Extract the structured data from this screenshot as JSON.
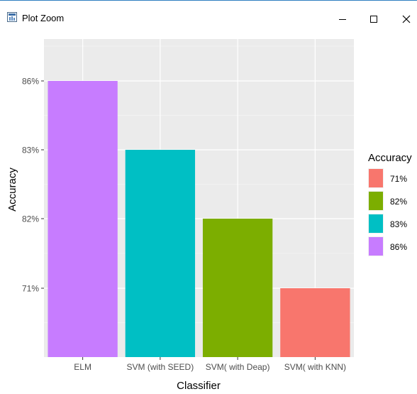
{
  "window": {
    "title": "Plot Zoom",
    "icons": {
      "app": "plot-window-icon",
      "minimize": "minimize-icon",
      "maximize": "maximize-icon",
      "close": "close-icon"
    }
  },
  "chart_data": {
    "type": "bar",
    "categories": [
      "ELM",
      "SVM (with SEED)",
      "SVM( with Deap)",
      "SVM( with KNN)"
    ],
    "value_labels": [
      "86%",
      "83%",
      "82%",
      "71%"
    ],
    "y_tick_labels": [
      "71%",
      "82%",
      "83%",
      "86%"
    ],
    "bar_levels": [
      4,
      3,
      2,
      1
    ],
    "fill_colors": [
      "#c77cff",
      "#00bfc4",
      "#7cae00",
      "#f8766d"
    ],
    "xlabel": "Classifier",
    "ylabel": "Accuracy",
    "y_axis": "discrete",
    "grid": true,
    "legend": {
      "title": "Accuracy",
      "position": "right",
      "entries": [
        {
          "label": "71%",
          "color": "#f8766d"
        },
        {
          "label": "82%",
          "color": "#7cae00"
        },
        {
          "label": "83%",
          "color": "#00bfc4"
        },
        {
          "label": "86%",
          "color": "#c77cff"
        }
      ]
    },
    "panel_background": "#ebebeb",
    "grid_color": "#ffffff"
  }
}
